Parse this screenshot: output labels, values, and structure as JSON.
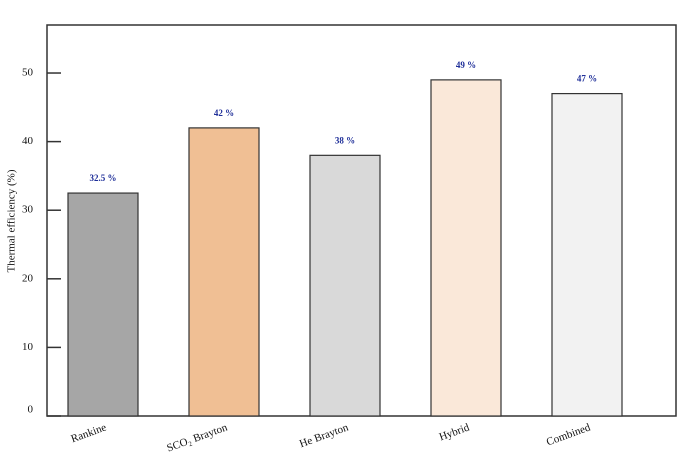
{
  "chart_data": {
    "type": "bar",
    "y_label": "Thermal efficiency (%)",
    "categories": [
      "Rankine",
      "SCO₂ Brayton",
      "He Brayton",
      "Hybrid",
      "Combined"
    ],
    "values": [
      32.5,
      42,
      38,
      49,
      47
    ],
    "value_labels": [
      "32.5 %",
      "42 %",
      "38 %",
      "49 %",
      "47 %"
    ],
    "colors": [
      "#a6a6a6",
      "#f0bf94",
      "#d9d9d9",
      "#fae8d9",
      "#f2f2f2"
    ],
    "ylim": [
      0,
      57
    ],
    "yticks": [
      0,
      10,
      20,
      30,
      40,
      50
    ],
    "grid": false
  }
}
